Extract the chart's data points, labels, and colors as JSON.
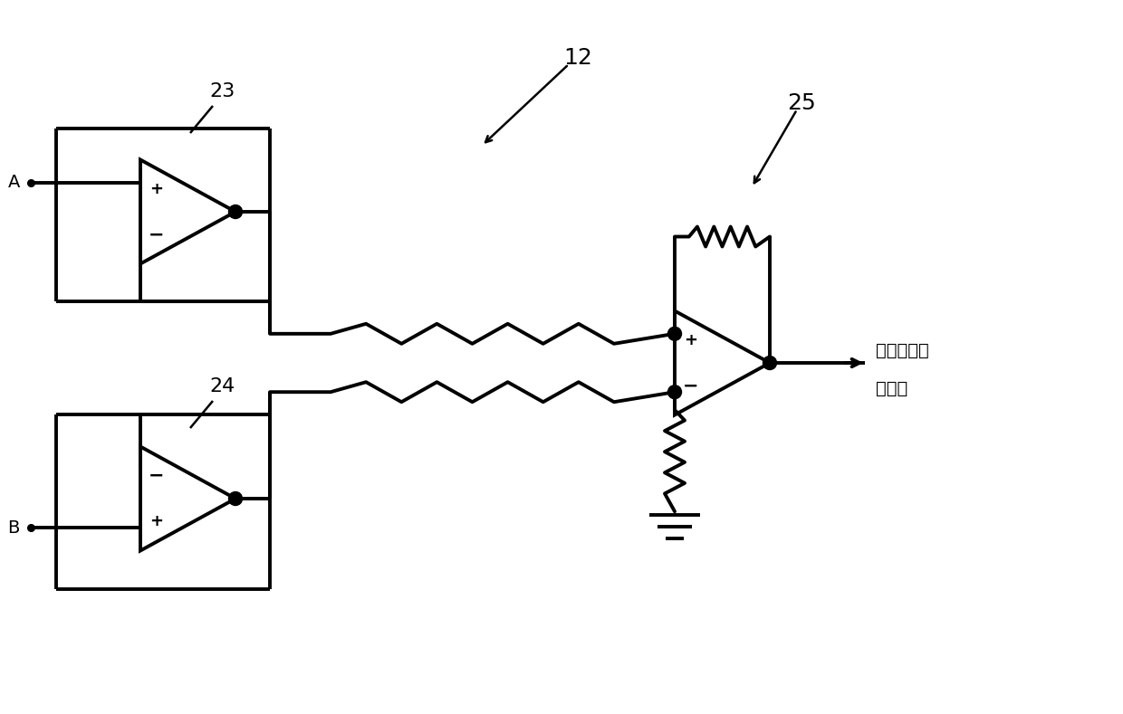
{
  "bg_color": "#ffffff",
  "line_color": "#000000",
  "linewidth": 2.8,
  "label_23": "23",
  "label_24": "24",
  "label_12": "12",
  "label_25": "25",
  "label_A": "A",
  "label_B": "B",
  "label_out_line1": "至旋转位置",
  "label_out_line2": "推断部",
  "figsize": [
    12.4,
    7.89
  ],
  "dpi": 100
}
